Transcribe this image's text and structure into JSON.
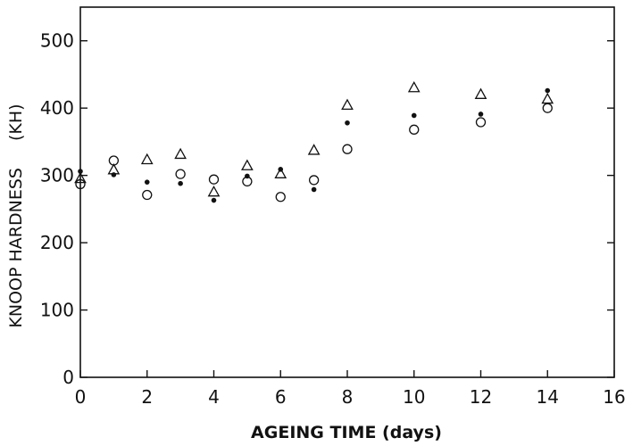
{
  "chart_data": {
    "type": "scatter",
    "xlabel": "AGEING TIME (days)",
    "ylabel": "KNOOP HARDNESS",
    "ylabel_unit": "(KH)",
    "xlim": [
      0,
      16
    ],
    "ylim": [
      0,
      550
    ],
    "xticks": [
      0,
      2,
      4,
      6,
      8,
      10,
      12,
      14,
      16
    ],
    "yticks": [
      0,
      100,
      200,
      300,
      400,
      500
    ],
    "grid": false,
    "series": [
      {
        "marker": "triangle-open",
        "points": [
          [
            0,
            295
          ],
          [
            1,
            308
          ],
          [
            2,
            323
          ],
          [
            3,
            331
          ],
          [
            4,
            275
          ],
          [
            5,
            314
          ],
          [
            6,
            302
          ],
          [
            7,
            337
          ],
          [
            8,
            404
          ],
          [
            10,
            430
          ],
          [
            12,
            420
          ],
          [
            14,
            413
          ]
        ]
      },
      {
        "marker": "dot-filled",
        "points": [
          [
            0,
            306
          ],
          [
            1,
            301
          ],
          [
            2,
            290
          ],
          [
            3,
            288
          ],
          [
            4,
            263
          ],
          [
            5,
            299
          ],
          [
            6,
            309
          ],
          [
            7,
            279
          ],
          [
            8,
            378
          ],
          [
            10,
            389
          ],
          [
            12,
            391
          ],
          [
            14,
            426
          ]
        ]
      },
      {
        "marker": "circle-open",
        "points": [
          [
            0,
            287
          ],
          [
            1,
            322
          ],
          [
            2,
            271
          ],
          [
            3,
            302
          ],
          [
            4,
            294
          ],
          [
            5,
            291
          ],
          [
            6,
            268
          ],
          [
            7,
            293
          ],
          [
            8,
            339
          ],
          [
            10,
            368
          ],
          [
            12,
            379
          ],
          [
            14,
            400
          ]
        ]
      }
    ]
  }
}
